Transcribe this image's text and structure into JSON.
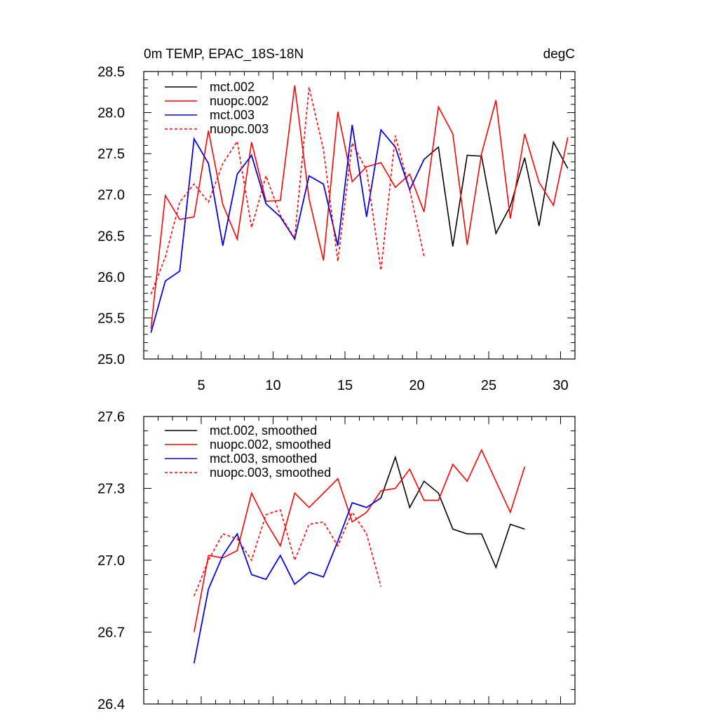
{
  "chart_data": [
    {
      "type": "line",
      "title": "0m TEMP, EPAC_18S-18N",
      "units": "degC",
      "xlim": [
        1,
        31
      ],
      "ylim": [
        25.0,
        28.5
      ],
      "x_ticks": [
        5,
        10,
        15,
        20,
        25,
        30
      ],
      "y_ticks": [
        25.0,
        25.5,
        26.0,
        26.5,
        27.0,
        27.5,
        28.0,
        28.5
      ],
      "y_tick_labels": [
        "25.0",
        "25.5",
        "26.0",
        "26.5",
        "27.0",
        "27.5",
        "28.0",
        "28.5"
      ],
      "legend_position": "top-left",
      "grid": false,
      "series": [
        {
          "name": "mct.002",
          "color": "#000000",
          "dash": "solid",
          "x": [
            1.5,
            2.5,
            3.5,
            4.5,
            5.5,
            6.5,
            7.5,
            8.5,
            9.5,
            10.5,
            11.5,
            12.5,
            13.5,
            14.5,
            15.5,
            16.5,
            17.5,
            18.5,
            19.5,
            20.5,
            21.5,
            22.5,
            23.5,
            24.5,
            25.5,
            26.5,
            27.5,
            28.5,
            29.5,
            30.5
          ],
          "values": [
            25.32,
            25.95,
            26.07,
            27.68,
            27.38,
            26.38,
            27.25,
            27.48,
            26.89,
            26.73,
            26.46,
            27.23,
            27.13,
            26.38,
            27.85,
            26.73,
            27.79,
            27.58,
            27.06,
            27.43,
            27.58,
            26.37,
            27.48,
            27.47,
            26.53,
            26.86,
            27.45,
            26.62,
            27.64,
            27.32
          ]
        },
        {
          "name": "nuopc.002",
          "color": "#ff0000",
          "dash": "solid",
          "x": [
            1.5,
            2.5,
            3.5,
            4.5,
            5.5,
            6.5,
            7.5,
            8.5,
            9.5,
            10.5,
            11.5,
            12.5,
            13.5,
            14.5,
            15.5,
            16.5,
            17.5,
            18.5,
            19.5,
            20.5,
            21.5,
            22.5,
            23.5,
            24.5,
            25.5,
            26.5,
            27.5,
            28.5,
            29.5,
            30.5
          ],
          "values": [
            25.37,
            26.99,
            26.7,
            26.73,
            27.78,
            26.88,
            26.46,
            27.64,
            26.92,
            26.93,
            28.33,
            26.95,
            26.2,
            28.01,
            27.16,
            27.34,
            27.39,
            27.09,
            27.25,
            26.79,
            28.07,
            27.74,
            26.39,
            27.5,
            28.15,
            26.71,
            27.74,
            27.15,
            26.87,
            27.7
          ]
        },
        {
          "name": "mct.003",
          "color": "#0000ff",
          "dash": "solid",
          "x": [
            1.5,
            2.5,
            3.5,
            4.5,
            5.5,
            6.5,
            7.5,
            8.5,
            9.5,
            10.5,
            11.5,
            12.5,
            13.5,
            14.5,
            15.5,
            16.5,
            17.5,
            18.5,
            19.5,
            20.5
          ],
          "values": [
            25.32,
            25.95,
            26.07,
            27.68,
            27.38,
            26.38,
            27.25,
            27.48,
            26.89,
            26.73,
            26.46,
            27.23,
            27.13,
            26.38,
            27.85,
            26.73,
            27.79,
            27.58,
            27.06,
            27.43
          ]
        },
        {
          "name": "nuopc.003",
          "color": "#ff0000",
          "dash": "dashed",
          "x": [
            1.5,
            2.5,
            3.5,
            4.5,
            5.5,
            6.5,
            7.5,
            8.5,
            9.5,
            10.5,
            11.5,
            12.5,
            13.5,
            14.5,
            15.5,
            16.5,
            17.5,
            18.5,
            19.5,
            20.5
          ],
          "values": [
            25.79,
            26.24,
            26.91,
            27.13,
            26.91,
            27.38,
            27.65,
            26.6,
            27.23,
            26.75,
            26.47,
            28.31,
            27.55,
            26.19,
            27.63,
            27.3,
            26.08,
            27.72,
            27.06,
            26.25
          ]
        }
      ]
    },
    {
      "type": "line",
      "xlim": [
        1,
        31
      ],
      "ylim": [
        26.4,
        27.6
      ],
      "x_ticks": [
        5,
        10,
        15,
        20,
        25,
        30
      ],
      "y_ticks": [
        26.4,
        26.7,
        27.0,
        27.3,
        27.6
      ],
      "y_tick_labels": [
        "26.4",
        "26.7",
        "27.0",
        "27.3",
        "27.6"
      ],
      "legend_position": "top-left",
      "grid": false,
      "series": [
        {
          "name": "mct.002, smoothed",
          "color": "#000000",
          "dash": "solid",
          "x": [
            4.5,
            5.5,
            6.5,
            7.5,
            8.5,
            9.5,
            10.5,
            11.5,
            12.5,
            13.5,
            14.5,
            15.5,
            16.5,
            17.5,
            18.5,
            19.5,
            20.5,
            21.5,
            22.5,
            23.5,
            24.5,
            25.5,
            26.5,
            27.5
          ],
          "values": [
            26.57,
            26.88,
            27.02,
            27.11,
            26.94,
            26.92,
            27.02,
            26.9,
            26.95,
            26.93,
            27.08,
            27.24,
            27.22,
            27.26,
            27.43,
            27.22,
            27.33,
            27.28,
            27.13,
            27.11,
            27.11,
            26.97,
            27.15,
            27.13
          ]
        },
        {
          "name": "nuopc.002, smoothed",
          "color": "#ff0000",
          "dash": "solid",
          "x": [
            4.5,
            5.5,
            6.5,
            7.5,
            8.5,
            9.5,
            10.5,
            11.5,
            12.5,
            13.5,
            14.5,
            15.5,
            16.5,
            17.5,
            18.5,
            19.5,
            20.5,
            21.5,
            22.5,
            23.5,
            24.5,
            25.5,
            26.5,
            27.5
          ],
          "values": [
            26.7,
            27.02,
            27.01,
            27.04,
            27.28,
            27.16,
            27.06,
            27.28,
            27.22,
            27.28,
            27.34,
            27.16,
            27.2,
            27.29,
            27.3,
            27.38,
            27.25,
            27.25,
            27.4,
            27.33,
            27.46,
            27.33,
            27.2,
            27.39
          ]
        },
        {
          "name": "mct.003, smoothed",
          "color": "#0000ff",
          "dash": "solid",
          "x": [
            4.5,
            5.5,
            6.5,
            7.5,
            8.5,
            9.5,
            10.5,
            11.5,
            12.5,
            13.5,
            14.5,
            15.5,
            16.5,
            17.5
          ],
          "values": [
            26.57,
            26.88,
            27.02,
            27.11,
            26.94,
            26.92,
            27.02,
            26.9,
            26.95,
            26.93,
            27.08,
            27.24,
            27.22,
            27.26
          ]
        },
        {
          "name": "nuopc.003, smoothed",
          "color": "#ff0000",
          "dash": "dashed",
          "x": [
            4.5,
            5.5,
            6.5,
            7.5,
            8.5,
            9.5,
            10.5,
            11.5,
            12.5,
            13.5,
            14.5,
            15.5,
            16.5,
            17.5
          ],
          "values": [
            26.85,
            27.0,
            27.11,
            27.09,
            27.0,
            27.19,
            27.21,
            27.0,
            27.15,
            27.16,
            27.06,
            27.2,
            27.11,
            26.89
          ]
        }
      ]
    }
  ]
}
